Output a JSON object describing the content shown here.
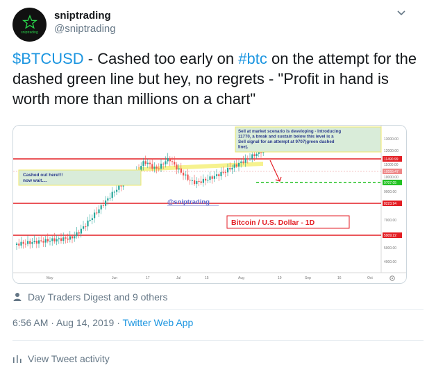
{
  "account": {
    "name": "sniptrading",
    "handle": "@sniptrading",
    "avatar_text": "sniptrading"
  },
  "tweet": {
    "ticker": "$BTCUSD",
    "part1": " - Cashed too early on ",
    "hashtag": "#btc",
    "part2": " on the attempt for the dashed green line but hey, no regrets - \"Profit in hand is worth more than millions on a chart\""
  },
  "chart_image": {
    "annotation_top": "Sell at market scenario is developing - Introducing 11770, a break and sustain below this level is a Sell signal for an attempt at 9707(green dashed line).",
    "annotation_left_1": "Cashed out here!!!",
    "annotation_left_2": "now wait....",
    "watermark": "@sniptrading",
    "title": "Bitcoin / U.S. Dollar - 1D",
    "price_levels": [
      "13000.00",
      "12000.00",
      "11490.99",
      "11000.00",
      "10555.47",
      "10000.00",
      "9707.05",
      "9000.00",
      "8223.94",
      "7000.00",
      "5909.22",
      "5000.00",
      "4000.00"
    ],
    "time_labels": [
      "May",
      "Jun",
      "17",
      "Jul",
      "15",
      "Aug",
      "19",
      "Sep",
      "16",
      "Oct"
    ],
    "colors": {
      "up": "#26a69a",
      "down": "#ef5350",
      "resistance": "#e31e24",
      "target": "#22c222",
      "trend": "#f5f07a",
      "note_bg": "#d9ecd9"
    }
  },
  "engagement": {
    "likes_text": "Day Traders Digest and 9 others"
  },
  "meta": {
    "time": "6:56 AM",
    "separator1": " · ",
    "date": "Aug 14, 2019",
    "separator2": " · ",
    "app": "Twitter Web App"
  },
  "footer": {
    "activity_label": "View Tweet activity"
  }
}
